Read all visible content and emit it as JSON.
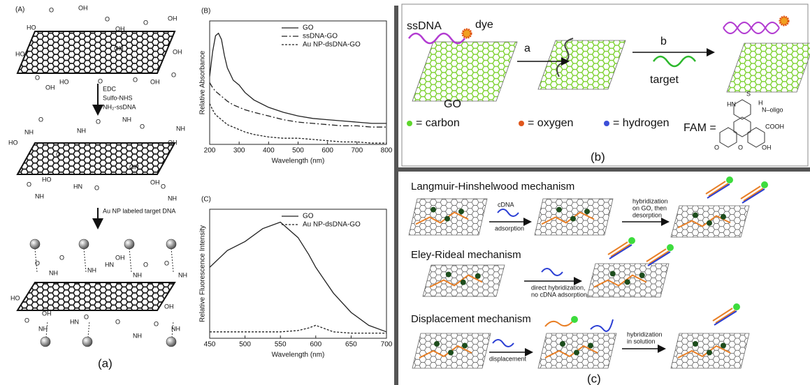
{
  "panel_a": {
    "label": "(A)",
    "step1": [
      "EDC",
      "Sulfo-NHS",
      "NH₂-ssDNA"
    ],
    "step2": "Au NP labeled target DNA",
    "structure_labels_top": [
      "O",
      "OH",
      "HO",
      "O",
      "OH",
      "OH",
      "O",
      "OH",
      "HO",
      "OH",
      "O",
      "HO",
      "O",
      "OH",
      "O",
      "OH",
      "O"
    ],
    "structure_labels_middle": [
      "NH",
      "O",
      "HO",
      "NH",
      "O",
      "NH",
      "O",
      "OH",
      "NH",
      "O",
      "OH",
      "HO",
      "NH",
      "O",
      "HN",
      "O",
      "OH",
      "NH",
      "O"
    ],
    "structure_labels_bottom": [
      "O",
      "NH",
      "O",
      "NH",
      "OH",
      "HN",
      "NH",
      "O",
      "NH",
      "O",
      "HO",
      "OH",
      "NH",
      "O",
      "HN",
      "O",
      "O",
      "NH",
      "NH",
      "O",
      "OH"
    ],
    "caption": "(a)"
  },
  "chart_data": [
    {
      "type": "line",
      "panel_label": "(B)",
      "x_label": "Wavelength (nm)",
      "y_label": "Relative Absorbance",
      "x": [
        200,
        210,
        220,
        230,
        240,
        250,
        260,
        280,
        300,
        320,
        350,
        400,
        450,
        500,
        550,
        600,
        650,
        700,
        750,
        800
      ],
      "xlim": [
        200,
        800
      ],
      "xticks": [
        200,
        300,
        400,
        500,
        600,
        700,
        800
      ],
      "ylim": [
        0,
        1
      ],
      "legend": "upper right",
      "series": [
        {
          "name": "GO",
          "color": "#222222",
          "dash": "solid",
          "values": [
            0.55,
            0.75,
            0.88,
            0.9,
            0.85,
            0.72,
            0.62,
            0.52,
            0.48,
            0.42,
            0.36,
            0.3,
            0.26,
            0.23,
            0.21,
            0.2,
            0.19,
            0.18,
            0.17,
            0.17
          ]
        },
        {
          "name": "ssDNA-GO",
          "color": "#222222",
          "dash": "dash-dot",
          "values": [
            0.5,
            0.46,
            0.43,
            0.41,
            0.39,
            0.37,
            0.35,
            0.32,
            0.3,
            0.28,
            0.26,
            0.23,
            0.2,
            0.18,
            0.17,
            0.16,
            0.15,
            0.15,
            0.14,
            0.14
          ]
        },
        {
          "name": "Au NP-dsDNA-GO",
          "color": "#222222",
          "dash": "dotted",
          "values": [
            0.33,
            0.28,
            0.24,
            0.22,
            0.2,
            0.18,
            0.16,
            0.14,
            0.12,
            0.1,
            0.08,
            0.06,
            0.05,
            0.05,
            0.04,
            0.03,
            0.02,
            0.02,
            0.01,
            0.01
          ]
        }
      ]
    },
    {
      "type": "line",
      "panel_label": "(C)",
      "x_label": "Wavelength (nm)",
      "y_label": "Relative Fluorescence Intensity",
      "x": [
        450,
        475,
        500,
        525,
        550,
        575,
        590,
        600,
        610,
        625,
        650,
        675,
        700
      ],
      "xlim": [
        450,
        700
      ],
      "xticks": [
        450,
        500,
        550,
        600,
        650,
        700
      ],
      "ylim": [
        0,
        1
      ],
      "legend": "upper right",
      "series": [
        {
          "name": "GO",
          "color": "#222222",
          "dash": "solid",
          "values": [
            0.55,
            0.68,
            0.75,
            0.85,
            0.9,
            0.78,
            0.65,
            0.55,
            0.47,
            0.35,
            0.2,
            0.1,
            0.05
          ]
        },
        {
          "name": "Au NP-dsDNA-GO",
          "color": "#222222",
          "dash": "dotted",
          "values": [
            0.05,
            0.05,
            0.05,
            0.05,
            0.05,
            0.06,
            0.08,
            0.1,
            0.08,
            0.05,
            0.04,
            0.04,
            0.04
          ]
        }
      ]
    }
  ],
  "panel_b": {
    "ssdna": "ssDNA",
    "dye": "dye",
    "step_a": "a",
    "step_b": "b",
    "target": "target",
    "go": "GO",
    "legend": [
      "= carbon",
      "= oxygen",
      "= hydrogen"
    ],
    "fam": "FAM =",
    "fam_labels": [
      "S",
      "HN",
      "H",
      "N–oligo",
      "COOH",
      "O",
      "O",
      "OH"
    ],
    "caption": "(b)"
  },
  "panel_c": {
    "lh_title": "Langmuir-Hinshelwood mechanism",
    "cdna": "cDNA",
    "adsorption": "adsorption",
    "lh_step": [
      "hybridization",
      "on GO, then",
      "desorption"
    ],
    "er_title": "Eley-Rideal mechanism",
    "er_step": [
      "direct hybridization,",
      "no cDNA adsorption"
    ],
    "d_title": "Displacement mechanism",
    "displacement": "displacement",
    "d_step": [
      "hybridization",
      "in solution"
    ],
    "caption": "(c)"
  }
}
